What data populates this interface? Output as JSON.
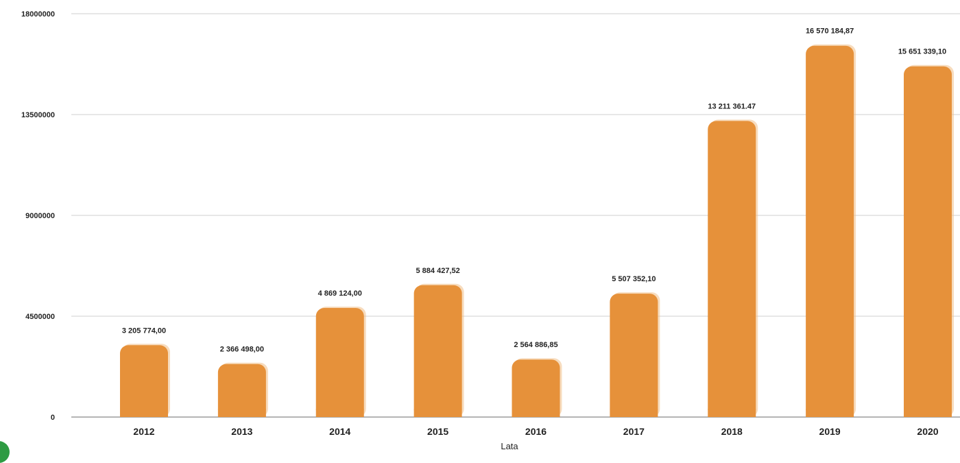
{
  "chart_data": {
    "type": "bar",
    "title": "",
    "xlabel": "Lata",
    "ylabel": "",
    "categories": [
      "2012",
      "2013",
      "2014",
      "2015",
      "2016",
      "2017",
      "2018",
      "2019",
      "2020"
    ],
    "values": [
      3205774.0,
      2366498.0,
      4869124.0,
      5884427.52,
      2564886.85,
      5507352.1,
      13211361.47,
      16570184.87,
      15651339.1
    ],
    "value_labels": [
      "3 205 774,00",
      "2 366 498,00",
      "4 869 124,00",
      "5 884 427,52",
      "2 564 886,85",
      "5 507 352,10",
      "13 211 361.47",
      "16 570 184,87",
      "15 651 339,10"
    ],
    "y_ticks": [
      "0",
      "4500000",
      "9000000",
      "13500000",
      "18000000"
    ],
    "ylim": [
      0,
      18000000
    ],
    "grid": true,
    "legend": "none",
    "bar_color": "#e6913a",
    "bar_shadow_color": "#f0c089"
  }
}
